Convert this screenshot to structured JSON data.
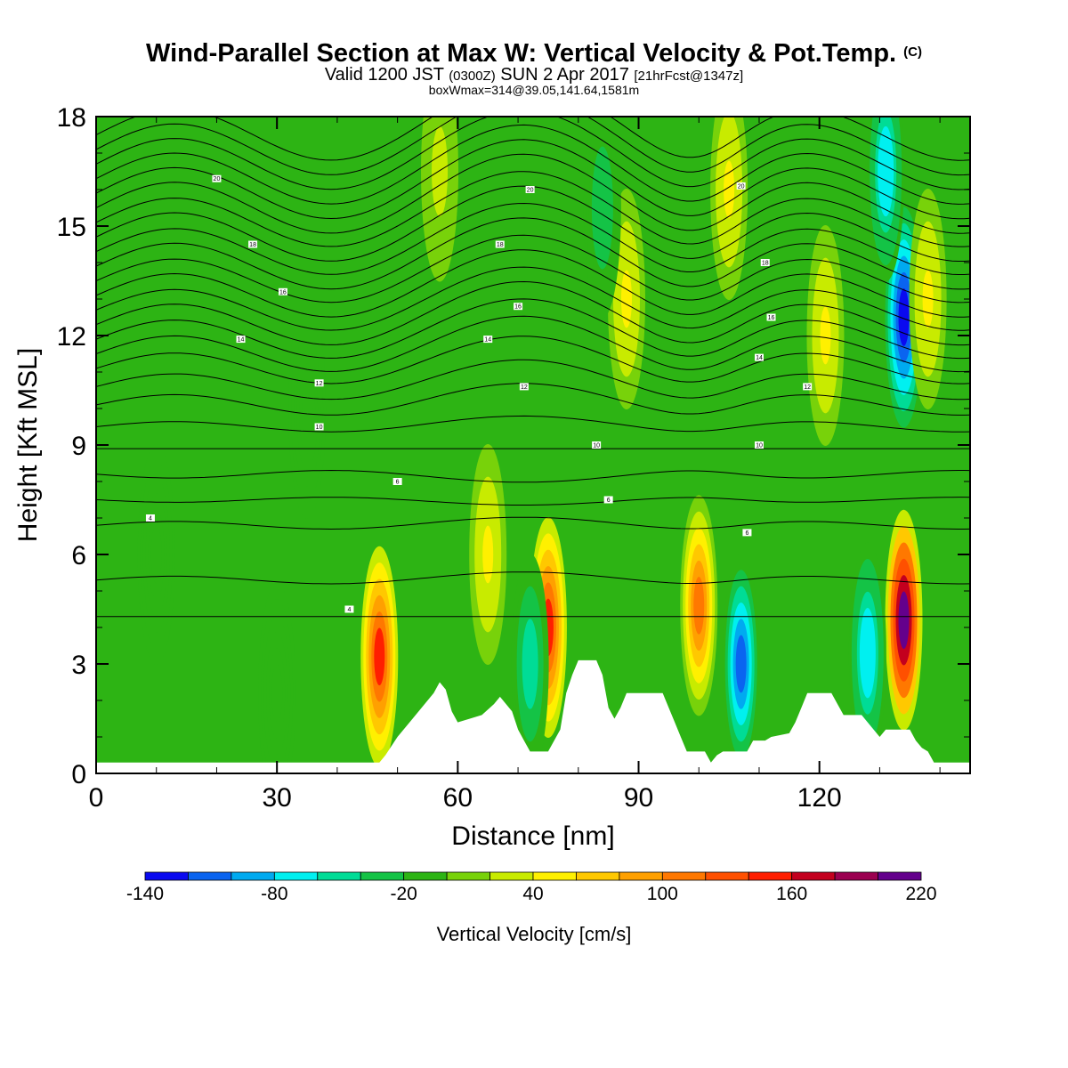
{
  "titles": {
    "main": "Wind-Parallel Section at Max W: Vertical Velocity & Pot.Temp.",
    "main_unit": "(C)",
    "line2_a": "Valid 1200 JST",
    "line2_b": "(0300Z)",
    "line2_c": "SUN 2 Apr 2017",
    "line2_d": "[21hrFcst@1347z]",
    "line3": "boxWmax=314@39.05,141.64,1581m"
  },
  "chart_data": {
    "type": "heatmap",
    "xlabel": "Distance [nm]",
    "ylabel": "Height [Kft MSL]",
    "xlim": [
      0,
      145
    ],
    "ylim": [
      0,
      18
    ],
    "xticks": [
      0,
      30,
      60,
      90,
      120
    ],
    "yticks": [
      0,
      3,
      6,
      9,
      12,
      15,
      18
    ],
    "colorbar": {
      "title": "Vertical Velocity [cm/s]",
      "levels": [
        -140,
        -120,
        -100,
        -80,
        -60,
        -40,
        -20,
        0,
        20,
        40,
        60,
        80,
        100,
        120,
        140,
        160,
        180,
        200,
        220
      ],
      "labels": [
        "-140",
        "-80",
        "-20",
        "40",
        "100",
        "160",
        "220"
      ],
      "label_values": [
        -140,
        -80,
        -20,
        40,
        100,
        160,
        220
      ],
      "colors": [
        "#0a0af0",
        "#0a64f0",
        "#00aaf0",
        "#00f0f0",
        "#00dc96",
        "#14c346",
        "#2db414",
        "#78d20a",
        "#c8eb00",
        "#fff000",
        "#ffc800",
        "#ffa000",
        "#ff7800",
        "#ff5000",
        "#ff1e00",
        "#c3001e",
        "#9b0050",
        "#64008c"
      ]
    },
    "cells": [
      {
        "x": 47,
        "h": 3.2,
        "w": 140
      },
      {
        "x": 75,
        "h": 4.0,
        "w": 140
      },
      {
        "x": 100,
        "h": 4.6,
        "w": 110
      },
      {
        "x": 134,
        "h": 4.2,
        "w": 200
      },
      {
        "x": 107,
        "h": 3.0,
        "w": -110
      },
      {
        "x": 128,
        "h": 3.3,
        "w": -80
      },
      {
        "x": 72,
        "h": 3.0,
        "w": -60
      },
      {
        "x": 134,
        "h": 12.5,
        "w": -140
      },
      {
        "x": 131,
        "h": 16.5,
        "w": -80
      },
      {
        "x": 88,
        "h": 13.0,
        "w": 40
      },
      {
        "x": 65,
        "h": 6.0,
        "w": 40
      },
      {
        "x": 121,
        "h": 12.0,
        "w": 40
      },
      {
        "x": 138,
        "h": 13.0,
        "w": 40
      },
      {
        "x": 105,
        "h": 16.0,
        "w": 40
      },
      {
        "x": 57,
        "h": 16.5,
        "w": 25
      },
      {
        "x": 35,
        "h": 10.0,
        "w": -20
      },
      {
        "x": 10,
        "h": 6.0,
        "w": -20
      },
      {
        "x": 30,
        "h": 2.2,
        "w": -20
      },
      {
        "x": 84,
        "h": 15.5,
        "w": -40
      }
    ],
    "terrain_kft": [
      [
        0,
        0.3
      ],
      [
        47,
        0.3
      ],
      [
        48,
        0.5
      ],
      [
        50,
        1.0
      ],
      [
        52,
        1.4
      ],
      [
        54,
        1.8
      ],
      [
        56,
        2.2
      ],
      [
        57,
        2.5
      ],
      [
        58,
        2.3
      ],
      [
        59,
        1.7
      ],
      [
        60,
        1.4
      ],
      [
        62,
        1.5
      ],
      [
        64,
        1.6
      ],
      [
        66,
        1.9
      ],
      [
        67,
        2.1
      ],
      [
        69,
        1.7
      ],
      [
        70,
        1.2
      ],
      [
        71,
        0.9
      ],
      [
        72,
        0.6
      ],
      [
        75,
        0.6
      ],
      [
        77,
        1.2
      ],
      [
        78,
        2.2
      ],
      [
        79,
        2.7
      ],
      [
        80,
        3.1
      ],
      [
        83,
        3.1
      ],
      [
        84,
        2.7
      ],
      [
        85,
        1.8
      ],
      [
        86,
        1.5
      ],
      [
        87,
        1.8
      ],
      [
        88,
        2.2
      ],
      [
        94,
        2.2
      ],
      [
        95,
        1.8
      ],
      [
        96,
        1.4
      ],
      [
        97,
        1.0
      ],
      [
        98,
        0.6
      ],
      [
        101,
        0.6
      ],
      [
        102,
        0.3
      ],
      [
        103,
        0.5
      ],
      [
        104,
        0.6
      ],
      [
        108,
        0.6
      ],
      [
        109,
        0.9
      ],
      [
        111,
        0.9
      ],
      [
        112,
        1.0
      ],
      [
        115,
        1.1
      ],
      [
        116,
        1.4
      ],
      [
        117,
        1.8
      ],
      [
        118,
        2.2
      ],
      [
        122,
        2.2
      ],
      [
        123,
        1.9
      ],
      [
        124,
        1.6
      ],
      [
        127,
        1.6
      ],
      [
        128,
        1.4
      ],
      [
        129,
        1.2
      ],
      [
        130,
        1.0
      ],
      [
        131,
        1.2
      ],
      [
        135,
        1.2
      ],
      [
        136,
        0.9
      ],
      [
        137,
        0.7
      ],
      [
        138,
        0.6
      ],
      [
        139,
        0.3
      ],
      [
        145,
        0.3
      ]
    ],
    "isentropes": [
      [
        4.3,
        0.0
      ],
      [
        5.3,
        0.3
      ],
      [
        6.8,
        0.3
      ],
      [
        7.5,
        -0.2
      ],
      [
        8.2,
        -0.3
      ],
      [
        8.9,
        0.0
      ],
      [
        9.5,
        0.4
      ],
      [
        10.1,
        0.8
      ],
      [
        10.6,
        1.0
      ],
      [
        11.1,
        1.2
      ],
      [
        11.5,
        1.4
      ],
      [
        11.9,
        1.5
      ],
      [
        12.3,
        1.6
      ],
      [
        12.7,
        1.6
      ],
      [
        13.1,
        1.7
      ],
      [
        13.5,
        1.7
      ],
      [
        13.9,
        1.8
      ],
      [
        14.3,
        1.8
      ],
      [
        14.7,
        1.9
      ],
      [
        15.1,
        1.9
      ],
      [
        15.5,
        2.0
      ],
      [
        15.9,
        2.0
      ],
      [
        16.3,
        2.0
      ],
      [
        16.7,
        2.0
      ],
      [
        17.1,
        2.0
      ],
      [
        17.5,
        2.0
      ]
    ],
    "contour_labels": [
      {
        "x": 9,
        "y": 7.0,
        "t": "4"
      },
      {
        "x": 42,
        "y": 4.5,
        "t": "4"
      },
      {
        "x": 50,
        "y": 8.0,
        "t": "6"
      },
      {
        "x": 37,
        "y": 9.5,
        "t": "10"
      },
      {
        "x": 37,
        "y": 10.7,
        "t": "12"
      },
      {
        "x": 24,
        "y": 11.9,
        "t": "14"
      },
      {
        "x": 31,
        "y": 13.2,
        "t": "16"
      },
      {
        "x": 26,
        "y": 14.5,
        "t": "18"
      },
      {
        "x": 20,
        "y": 16.3,
        "t": "20"
      },
      {
        "x": 85,
        "y": 7.5,
        "t": "6"
      },
      {
        "x": 83,
        "y": 9.0,
        "t": "10"
      },
      {
        "x": 71,
        "y": 10.6,
        "t": "12"
      },
      {
        "x": 65,
        "y": 11.9,
        "t": "14"
      },
      {
        "x": 70,
        "y": 12.8,
        "t": "16"
      },
      {
        "x": 67,
        "y": 14.5,
        "t": "18"
      },
      {
        "x": 72,
        "y": 16.0,
        "t": "20"
      },
      {
        "x": 108,
        "y": 6.6,
        "t": "6"
      },
      {
        "x": 110,
        "y": 9.0,
        "t": "10"
      },
      {
        "x": 118,
        "y": 10.6,
        "t": "12"
      },
      {
        "x": 110,
        "y": 11.4,
        "t": "14"
      },
      {
        "x": 112,
        "y": 12.5,
        "t": "16"
      },
      {
        "x": 111,
        "y": 14.0,
        "t": "18"
      },
      {
        "x": 107,
        "y": 16.1,
        "t": "20"
      }
    ]
  }
}
